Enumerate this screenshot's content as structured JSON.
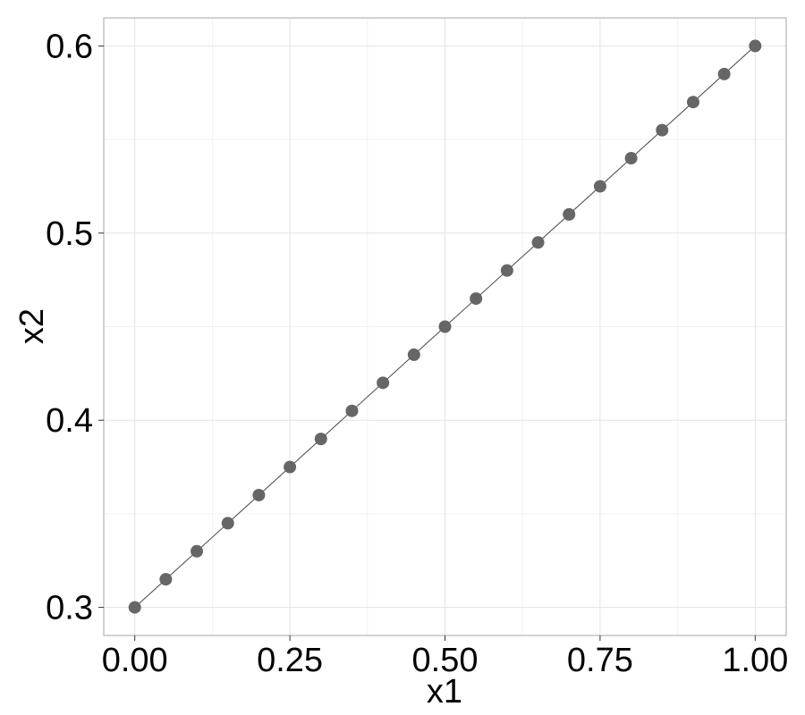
{
  "chart_data": {
    "type": "scatter",
    "title": "",
    "xlabel": "x1",
    "ylabel": "x2",
    "xlim": [
      -0.05,
      1.05
    ],
    "ylim": [
      0.285,
      0.615
    ],
    "x_major_ticks": [
      0.0,
      0.25,
      0.5,
      0.75,
      1.0
    ],
    "x_tick_labels": [
      "0.00",
      "0.25",
      "0.50",
      "0.75",
      "1.00"
    ],
    "x_minor_ticks": [
      0.125,
      0.375,
      0.625,
      0.875
    ],
    "y_major_ticks": [
      0.3,
      0.4,
      0.5,
      0.6
    ],
    "y_tick_labels": [
      "0.3",
      "0.4",
      "0.5",
      "0.6"
    ],
    "y_minor_ticks": [
      0.35,
      0.45,
      0.55
    ],
    "grid": true,
    "legend": "none",
    "series": [
      {
        "type": "scatter",
        "color": "#666666",
        "x": [
          0.0,
          0.05,
          0.1,
          0.15,
          0.2,
          0.25,
          0.3,
          0.35,
          0.4,
          0.45,
          0.5,
          0.55,
          0.6,
          0.65,
          0.7,
          0.75,
          0.8,
          0.85,
          0.9,
          0.95,
          1.0
        ],
        "y": [
          0.3,
          0.315,
          0.33,
          0.345,
          0.36,
          0.375,
          0.39,
          0.405,
          0.42,
          0.435,
          0.45,
          0.465,
          0.48,
          0.495,
          0.51,
          0.525,
          0.54,
          0.555,
          0.57,
          0.585,
          0.6
        ]
      },
      {
        "type": "line",
        "color": "#444444",
        "x": [
          0.0,
          1.0
        ],
        "y": [
          0.3,
          0.6
        ]
      }
    ]
  }
}
